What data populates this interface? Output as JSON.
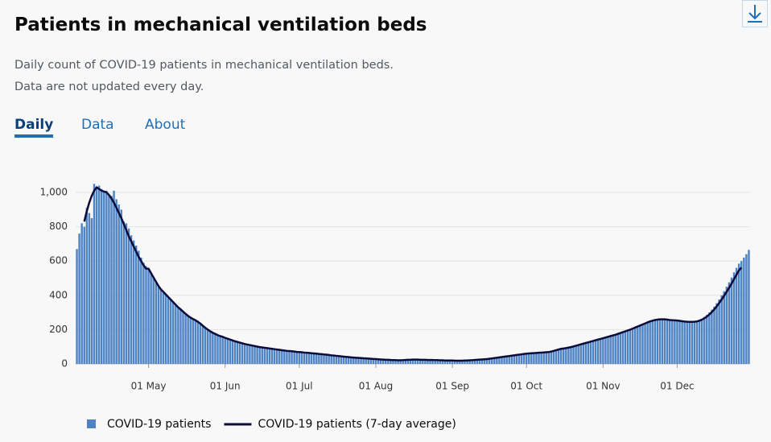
{
  "header": {
    "title": "Patients in mechanical ventilation beds",
    "description": [
      "Daily count of COVID-19 patients in mechanical ventilation beds.",
      "Data are not updated every day."
    ]
  },
  "tabs": [
    "Daily",
    "Data",
    "About"
  ],
  "chart_data": {
    "type": "bar",
    "categories": [
      null,
      null,
      null,
      null,
      null,
      null,
      null,
      null,
      null,
      null,
      null,
      null,
      null,
      null,
      null,
      null,
      null,
      null,
      null,
      null,
      null,
      null,
      null,
      null,
      null,
      null,
      null,
      null,
      null,
      "01 May",
      null,
      null,
      null,
      null,
      null,
      null,
      null,
      null,
      null,
      null,
      null,
      null,
      null,
      null,
      null,
      null,
      null,
      null,
      null,
      null,
      null,
      null,
      null,
      null,
      null,
      null,
      null,
      null,
      null,
      null,
      "01 Jun",
      null,
      null,
      null,
      null,
      null,
      null,
      null,
      null,
      null,
      null,
      null,
      null,
      null,
      null,
      null,
      null,
      null,
      null,
      null,
      null,
      null,
      null,
      null,
      null,
      null,
      null,
      null,
      null,
      null,
      "01 Jul",
      null,
      null,
      null,
      null,
      null,
      null,
      null,
      null,
      null,
      null,
      null,
      null,
      null,
      null,
      null,
      null,
      null,
      null,
      null,
      null,
      null,
      null,
      null,
      null,
      null,
      null,
      null,
      null,
      null,
      null,
      "01 Aug",
      null,
      null,
      null,
      null,
      null,
      null,
      null,
      null,
      null,
      null,
      null,
      null,
      null,
      null,
      null,
      null,
      null,
      null,
      null,
      null,
      null,
      null,
      null,
      null,
      null,
      null,
      null,
      null,
      null,
      null,
      "01 Sep",
      null,
      null,
      null,
      null,
      null,
      null,
      null,
      null,
      null,
      null,
      null,
      null,
      null,
      null,
      null,
      null,
      null,
      null,
      null,
      null,
      null,
      null,
      null,
      null,
      null,
      null,
      null,
      null,
      null,
      "01 Oct",
      null,
      null,
      null,
      null,
      null,
      null,
      null,
      null,
      null,
      null,
      null,
      null,
      null,
      null,
      null,
      null,
      null,
      null,
      null,
      null,
      null,
      null,
      null,
      null,
      null,
      null,
      null,
      null,
      null,
      null,
      "01 Nov",
      null,
      null,
      null,
      null,
      null,
      null,
      null,
      null,
      null,
      null,
      null,
      null,
      null,
      null,
      null,
      null,
      null,
      null,
      null,
      null,
      null,
      null,
      null,
      null,
      null,
      null,
      null,
      null,
      null,
      "01 Dec",
      null,
      null,
      null,
      null,
      null,
      null,
      null,
      null,
      null,
      null,
      null,
      null,
      null,
      null,
      null,
      null,
      null,
      null,
      null,
      null,
      null,
      null,
      null,
      null,
      null,
      null,
      null,
      null,
      null
    ],
    "series": [
      {
        "name": "COVID-19 patients",
        "type": "bar",
        "color": "#4f84c4",
        "values": [
          670,
          760,
          820,
          800,
          910,
          880,
          850,
          1050,
          1030,
          1040,
          1020,
          1000,
          1010,
          990,
          980,
          1010,
          960,
          930,
          900,
          830,
          820,
          790,
          750,
          720,
          690,
          660,
          620,
          590,
          570,
          555,
          530,
          505,
          480,
          455,
          435,
          420,
          405,
          390,
          375,
          360,
          345,
          330,
          318,
          305,
          292,
          280,
          270,
          262,
          255,
          245,
          235,
          222,
          210,
          200,
          190,
          182,
          175,
          168,
          162,
          158,
          152,
          147,
          142,
          137,
          132,
          128,
          124,
          120,
          116,
          113,
          110,
          107,
          104,
          101,
          98,
          96,
          94,
          92,
          90,
          88,
          86,
          84,
          82,
          80,
          78,
          76,
          75,
          74,
          72,
          70,
          69,
          68,
          66,
          65,
          64,
          62,
          61,
          60,
          58,
          57,
          55,
          54,
          52,
          50,
          49,
          47,
          46,
          44,
          42,
          41,
          40,
          38,
          37,
          36,
          35,
          34,
          33,
          32,
          31,
          30,
          29,
          28,
          27,
          26,
          25,
          24,
          24,
          23,
          22,
          22,
          21,
          21,
          22,
          23,
          24,
          24,
          25,
          25,
          25,
          24,
          24,
          24,
          23,
          23,
          23,
          22,
          22,
          21,
          21,
          20,
          20,
          20,
          20,
          19,
          19,
          19,
          19,
          20,
          20,
          21,
          22,
          23,
          24,
          25,
          26,
          27,
          28,
          30,
          32,
          34,
          36,
          38,
          40,
          42,
          44,
          46,
          48,
          50,
          52,
          54,
          56,
          58,
          60,
          61,
          62,
          63,
          64,
          65,
          66,
          67,
          68,
          69,
          72,
          76,
          80,
          84,
          88,
          90,
          92,
          95,
          98,
          102,
          106,
          110,
          114,
          118,
          122,
          126,
          130,
          134,
          138,
          142,
          146,
          150,
          154,
          158,
          162,
          166,
          170,
          175,
          180,
          185,
          190,
          195,
          200,
          206,
          212,
          218,
          224,
          230,
          236,
          242,
          248,
          252,
          256,
          258,
          260,
          260,
          260,
          258,
          256,
          255,
          254,
          252,
          250,
          248,
          246,
          245,
          244,
          244,
          246,
          250,
          256,
          264,
          274,
          286,
          300,
          316,
          334,
          354,
          376,
          400,
          424,
          450,
          476,
          504,
          534,
          560,
          585,
          600,
          620,
          640,
          665
        ]
      },
      {
        "name": "COVID-19 patients (7-day average)",
        "type": "line",
        "color": "#0b0c3c",
        "values": [
          null,
          null,
          null,
          830,
          890,
          940,
          980,
          1010,
          1030,
          1020,
          1010,
          1005,
          1000,
          985,
          965,
          940,
          910,
          880,
          850,
          815,
          780,
          745,
          715,
          685,
          655,
          625,
          600,
          575,
          555,
          555,
          530,
          505,
          480,
          455,
          435,
          420,
          405,
          390,
          375,
          360,
          345,
          330,
          318,
          305,
          292,
          280,
          270,
          262,
          255,
          245,
          235,
          222,
          210,
          200,
          190,
          182,
          175,
          168,
          162,
          158,
          152,
          147,
          142,
          137,
          132,
          128,
          124,
          120,
          116,
          113,
          110,
          107,
          104,
          101,
          98,
          96,
          94,
          92,
          90,
          88,
          86,
          84,
          82,
          80,
          78,
          76,
          75,
          74,
          72,
          70,
          69,
          68,
          66,
          65,
          64,
          62,
          61,
          60,
          58,
          57,
          55,
          54,
          52,
          50,
          49,
          47,
          46,
          44,
          42,
          41,
          40,
          38,
          37,
          36,
          35,
          34,
          33,
          32,
          31,
          30,
          29,
          28,
          27,
          26,
          25,
          24,
          24,
          23,
          22,
          22,
          21,
          21,
          22,
          23,
          24,
          24,
          25,
          25,
          25,
          24,
          24,
          24,
          23,
          23,
          23,
          22,
          22,
          21,
          21,
          20,
          20,
          20,
          20,
          19,
          19,
          19,
          19,
          20,
          20,
          21,
          22,
          23,
          24,
          25,
          26,
          27,
          28,
          30,
          32,
          34,
          36,
          38,
          40,
          42,
          44,
          46,
          48,
          50,
          52,
          54,
          56,
          58,
          60,
          61,
          62,
          63,
          64,
          65,
          66,
          67,
          68,
          69,
          72,
          76,
          80,
          84,
          88,
          90,
          92,
          95,
          98,
          102,
          106,
          110,
          114,
          118,
          122,
          126,
          130,
          134,
          138,
          142,
          146,
          150,
          154,
          158,
          162,
          166,
          170,
          175,
          180,
          185,
          190,
          195,
          200,
          206,
          212,
          218,
          224,
          230,
          236,
          242,
          248,
          252,
          256,
          258,
          260,
          260,
          260,
          258,
          256,
          255,
          254,
          253,
          251,
          249,
          247,
          246,
          245,
          245,
          246,
          248,
          252,
          258,
          266,
          276,
          288,
          302,
          318,
          336,
          356,
          376,
          398,
          420,
          444,
          468,
          494,
          520,
          545,
          562,
          null,
          null,
          null
        ]
      }
    ],
    "ylim": [
      0,
      1000
    ],
    "yticks": [
      0,
      200,
      400,
      600,
      800,
      {
        "value": 1000,
        "label": "1,000"
      }
    ],
    "grid": true
  }
}
